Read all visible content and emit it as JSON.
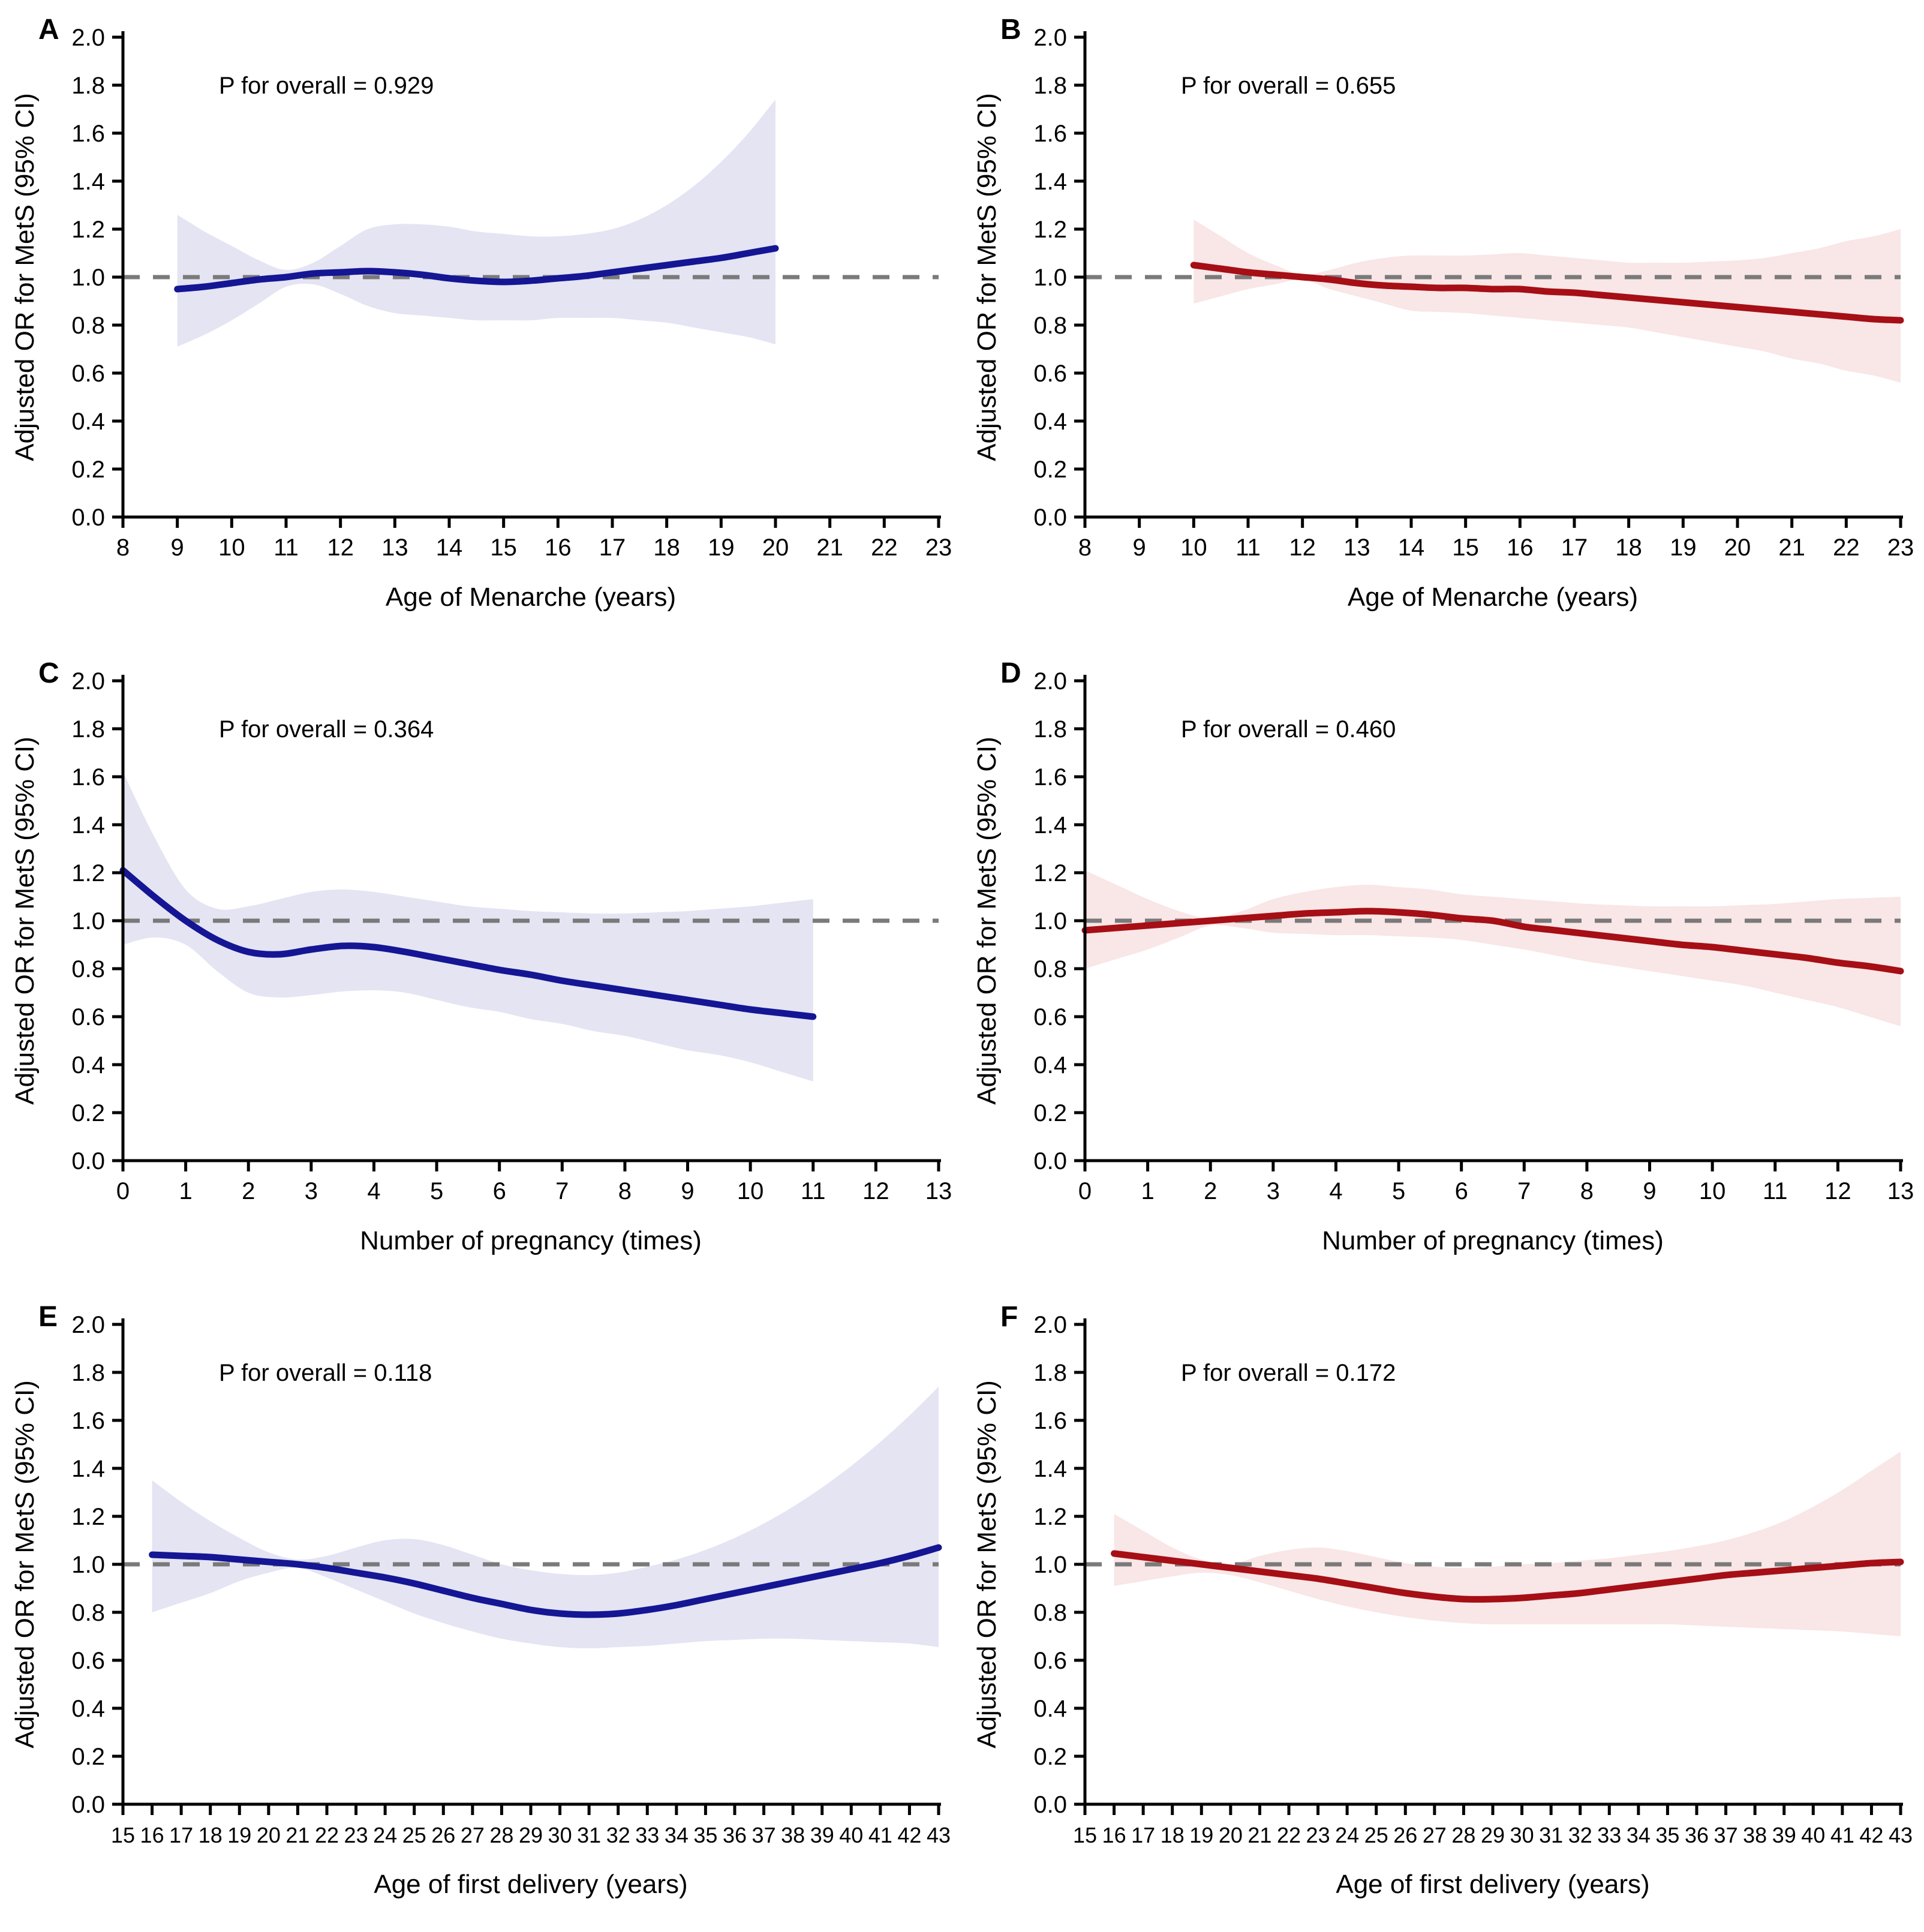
{
  "figure": {
    "background": "#ffffff",
    "axis_color": "#000000",
    "reference_line_color": "#7a7a7a",
    "reference_value": 1.0
  },
  "chart_data": [
    {
      "id": "A",
      "type": "line",
      "p_text": "P for overall = 0.929",
      "xlabel": "Age of Menarche (years)",
      "ylabel": "Adjusted OR for MetS (95% CI)",
      "xlim": [
        8,
        23
      ],
      "ylim": [
        0,
        2
      ],
      "x_ticks": [
        8,
        9,
        10,
        11,
        12,
        13,
        14,
        15,
        16,
        17,
        18,
        19,
        20,
        21,
        22,
        23
      ],
      "y_ticks": [
        0,
        0.2,
        0.4,
        0.6,
        0.8,
        1,
        1.2,
        1.4,
        1.6,
        1.8,
        2
      ],
      "ref_y": 1.0,
      "line_color": "#141694",
      "band_color": "#e4e4f3",
      "x": [
        9,
        9.5,
        10,
        10.5,
        11,
        11.5,
        12,
        12.5,
        13,
        13.5,
        14,
        14.5,
        15,
        15.5,
        16,
        16.5,
        17,
        17.5,
        18,
        18.5,
        19,
        19.5,
        20
      ],
      "or": [
        0.95,
        0.96,
        0.975,
        0.99,
        1.0,
        1.015,
        1.02,
        1.025,
        1.02,
        1.01,
        0.995,
        0.985,
        0.98,
        0.985,
        0.995,
        1.005,
        1.02,
        1.035,
        1.05,
        1.065,
        1.08,
        1.1,
        1.12
      ],
      "upper": [
        1.26,
        1.19,
        1.13,
        1.07,
        1.03,
        1.06,
        1.13,
        1.2,
        1.22,
        1.22,
        1.21,
        1.19,
        1.18,
        1.17,
        1.17,
        1.18,
        1.2,
        1.24,
        1.3,
        1.38,
        1.48,
        1.6,
        1.74
      ],
      "lower": [
        0.71,
        0.76,
        0.82,
        0.89,
        0.96,
        0.97,
        0.93,
        0.88,
        0.85,
        0.84,
        0.83,
        0.82,
        0.82,
        0.82,
        0.83,
        0.83,
        0.83,
        0.82,
        0.81,
        0.79,
        0.77,
        0.75,
        0.72
      ]
    },
    {
      "id": "B",
      "type": "line",
      "p_text": "P for overall = 0.655",
      "xlabel": "Age of Menarche (years)",
      "ylabel": "Adjusted OR for MetS (95% CI)",
      "xlim": [
        8,
        23
      ],
      "ylim": [
        0,
        2
      ],
      "x_ticks": [
        8,
        9,
        10,
        11,
        12,
        13,
        14,
        15,
        16,
        17,
        18,
        19,
        20,
        21,
        22,
        23
      ],
      "y_ticks": [
        0,
        0.2,
        0.4,
        0.6,
        0.8,
        1,
        1.2,
        1.4,
        1.6,
        1.8,
        2
      ],
      "ref_y": 1.0,
      "line_color": "#a50f15",
      "band_color": "#f9e6e7",
      "x": [
        10,
        10.5,
        11,
        11.5,
        12,
        12.5,
        13,
        13.5,
        14,
        14.5,
        15,
        15.5,
        16,
        16.5,
        17,
        17.5,
        18,
        18.5,
        19,
        19.5,
        20,
        20.5,
        21,
        21.5,
        22,
        22.5,
        23
      ],
      "or": [
        1.05,
        1.035,
        1.02,
        1.01,
        1.0,
        0.99,
        0.975,
        0.965,
        0.96,
        0.955,
        0.955,
        0.95,
        0.95,
        0.94,
        0.935,
        0.925,
        0.915,
        0.905,
        0.895,
        0.885,
        0.875,
        0.865,
        0.855,
        0.845,
        0.835,
        0.825,
        0.82
      ],
      "upper": [
        1.24,
        1.17,
        1.1,
        1.05,
        1.01,
        1.03,
        1.06,
        1.08,
        1.09,
        1.09,
        1.09,
        1.095,
        1.1,
        1.09,
        1.08,
        1.07,
        1.06,
        1.06,
        1.06,
        1.065,
        1.07,
        1.08,
        1.1,
        1.12,
        1.15,
        1.17,
        1.2
      ],
      "lower": [
        0.89,
        0.92,
        0.95,
        0.97,
        0.99,
        0.95,
        0.92,
        0.89,
        0.86,
        0.855,
        0.85,
        0.84,
        0.83,
        0.82,
        0.81,
        0.8,
        0.79,
        0.77,
        0.75,
        0.73,
        0.71,
        0.69,
        0.66,
        0.64,
        0.61,
        0.59,
        0.56
      ]
    },
    {
      "id": "C",
      "type": "line",
      "p_text": "P for overall = 0.364",
      "xlabel": "Number of pregnancy (times)",
      "ylabel": "Adjusted OR for MetS (95% CI)",
      "xlim": [
        0,
        13
      ],
      "ylim": [
        0,
        2
      ],
      "x_ticks": [
        0,
        1,
        2,
        3,
        4,
        5,
        6,
        7,
        8,
        9,
        10,
        11,
        12,
        13
      ],
      "y_ticks": [
        0,
        0.2,
        0.4,
        0.6,
        0.8,
        1,
        1.2,
        1.4,
        1.6,
        1.8,
        2
      ],
      "ref_y": 1.0,
      "line_color": "#141694",
      "band_color": "#e4e4f3",
      "x": [
        0,
        0.5,
        1,
        1.5,
        2,
        2.5,
        3,
        3.5,
        4,
        4.5,
        5,
        5.5,
        6,
        6.5,
        7,
        7.5,
        8,
        8.5,
        9,
        9.5,
        10,
        10.5,
        11
      ],
      "or": [
        1.21,
        1.1,
        1.0,
        0.92,
        0.87,
        0.86,
        0.88,
        0.895,
        0.89,
        0.87,
        0.845,
        0.82,
        0.795,
        0.775,
        0.75,
        0.73,
        0.71,
        0.69,
        0.67,
        0.65,
        0.63,
        0.615,
        0.6
      ],
      "upper": [
        1.62,
        1.35,
        1.13,
        1.05,
        1.06,
        1.09,
        1.12,
        1.13,
        1.12,
        1.1,
        1.08,
        1.06,
        1.05,
        1.04,
        1.035,
        1.03,
        1.03,
        1.035,
        1.04,
        1.05,
        1.06,
        1.075,
        1.09
      ],
      "lower": [
        0.9,
        0.93,
        0.9,
        0.79,
        0.7,
        0.68,
        0.69,
        0.705,
        0.71,
        0.7,
        0.67,
        0.64,
        0.62,
        0.59,
        0.57,
        0.54,
        0.52,
        0.49,
        0.46,
        0.44,
        0.41,
        0.37,
        0.33
      ]
    },
    {
      "id": "D",
      "type": "line",
      "p_text": "P for overall = 0.460",
      "xlabel": "Number of pregnancy (times)",
      "ylabel": "Adjusted OR for MetS (95% CI)",
      "xlim": [
        0,
        13
      ],
      "ylim": [
        0,
        2
      ],
      "x_ticks": [
        0,
        1,
        2,
        3,
        4,
        5,
        6,
        7,
        8,
        9,
        10,
        11,
        12,
        13
      ],
      "y_ticks": [
        0,
        0.2,
        0.4,
        0.6,
        0.8,
        1,
        1.2,
        1.4,
        1.6,
        1.8,
        2
      ],
      "ref_y": 1.0,
      "line_color": "#a50f15",
      "band_color": "#f9e6e7",
      "x": [
        0,
        0.5,
        1,
        1.5,
        2,
        2.5,
        3,
        3.5,
        4,
        4.5,
        5,
        5.5,
        6,
        6.5,
        7,
        7.5,
        8,
        8.5,
        9,
        9.5,
        10,
        10.5,
        11,
        11.5,
        12,
        12.5,
        13
      ],
      "or": [
        0.96,
        0.97,
        0.98,
        0.99,
        1.0,
        1.01,
        1.02,
        1.03,
        1.035,
        1.04,
        1.035,
        1.025,
        1.01,
        1.0,
        0.975,
        0.96,
        0.945,
        0.93,
        0.915,
        0.9,
        0.89,
        0.875,
        0.86,
        0.845,
        0.825,
        0.81,
        0.79
      ],
      "upper": [
        1.21,
        1.15,
        1.09,
        1.04,
        1.01,
        1.04,
        1.09,
        1.12,
        1.14,
        1.15,
        1.14,
        1.13,
        1.11,
        1.1,
        1.09,
        1.08,
        1.07,
        1.065,
        1.06,
        1.06,
        1.06,
        1.065,
        1.07,
        1.08,
        1.09,
        1.095,
        1.1
      ],
      "lower": [
        0.8,
        0.84,
        0.88,
        0.93,
        0.98,
        0.97,
        0.95,
        0.945,
        0.94,
        0.94,
        0.935,
        0.93,
        0.92,
        0.9,
        0.88,
        0.855,
        0.83,
        0.81,
        0.79,
        0.77,
        0.75,
        0.73,
        0.7,
        0.67,
        0.64,
        0.6,
        0.56
      ]
    },
    {
      "id": "E",
      "type": "line",
      "p_text": "P for overall = 0.118",
      "xlabel": "Age of first delivery (years)",
      "ylabel": "Adjusted OR for MetS (95% CI)",
      "xlim": [
        15,
        43
      ],
      "ylim": [
        0,
        2
      ],
      "x_ticks": [
        15,
        16,
        17,
        18,
        19,
        20,
        21,
        22,
        23,
        24,
        25,
        26,
        27,
        28,
        29,
        30,
        31,
        32,
        33,
        34,
        35,
        36,
        37,
        38,
        39,
        40,
        41,
        42,
        43
      ],
      "y_ticks": [
        0,
        0.2,
        0.4,
        0.6,
        0.8,
        1,
        1.2,
        1.4,
        1.6,
        1.8,
        2
      ],
      "ref_y": 1.0,
      "line_color": "#141694",
      "band_color": "#e4e4f3",
      "x": [
        16,
        17,
        18,
        19,
        20,
        21,
        22,
        23,
        24,
        25,
        26,
        27,
        28,
        29,
        30,
        31,
        32,
        33,
        34,
        35,
        36,
        37,
        38,
        39,
        40,
        41,
        42,
        43
      ],
      "or": [
        1.04,
        1.035,
        1.03,
        1.02,
        1.01,
        1.0,
        0.985,
        0.965,
        0.945,
        0.92,
        0.89,
        0.86,
        0.835,
        0.81,
        0.795,
        0.79,
        0.795,
        0.81,
        0.83,
        0.855,
        0.88,
        0.905,
        0.93,
        0.955,
        0.98,
        1.005,
        1.035,
        1.07
      ],
      "upper": [
        1.35,
        1.26,
        1.18,
        1.11,
        1.05,
        1.02,
        1.035,
        1.07,
        1.1,
        1.105,
        1.08,
        1.04,
        1.0,
        0.975,
        0.96,
        0.955,
        0.965,
        0.99,
        1.02,
        1.06,
        1.11,
        1.17,
        1.24,
        1.32,
        1.41,
        1.51,
        1.62,
        1.74
      ],
      "lower": [
        0.8,
        0.84,
        0.88,
        0.93,
        0.965,
        0.985,
        0.945,
        0.895,
        0.845,
        0.795,
        0.755,
        0.72,
        0.69,
        0.67,
        0.655,
        0.65,
        0.655,
        0.66,
        0.67,
        0.68,
        0.685,
        0.69,
        0.69,
        0.685,
        0.68,
        0.675,
        0.67,
        0.655
      ]
    },
    {
      "id": "F",
      "type": "line",
      "p_text": "P for overall = 0.172",
      "xlabel": "Age of first delivery (years)",
      "ylabel": "Adjusted OR for MetS (95% CI)",
      "xlim": [
        15,
        43
      ],
      "ylim": [
        0,
        2
      ],
      "x_ticks": [
        15,
        16,
        17,
        18,
        19,
        20,
        21,
        22,
        23,
        24,
        25,
        26,
        27,
        28,
        29,
        30,
        31,
        32,
        33,
        34,
        35,
        36,
        37,
        38,
        39,
        40,
        41,
        42,
        43
      ],
      "y_ticks": [
        0,
        0.2,
        0.4,
        0.6,
        0.8,
        1,
        1.2,
        1.4,
        1.6,
        1.8,
        2
      ],
      "ref_y": 1.0,
      "line_color": "#a50f15",
      "band_color": "#f9e6e7",
      "x": [
        16,
        17,
        18,
        19,
        20,
        21,
        22,
        23,
        24,
        25,
        26,
        27,
        28,
        29,
        30,
        31,
        32,
        33,
        34,
        35,
        36,
        37,
        38,
        39,
        40,
        41,
        42,
        43
      ],
      "or": [
        1.045,
        1.03,
        1.015,
        1.0,
        0.985,
        0.97,
        0.955,
        0.94,
        0.92,
        0.9,
        0.88,
        0.865,
        0.855,
        0.855,
        0.86,
        0.87,
        0.88,
        0.895,
        0.91,
        0.925,
        0.94,
        0.955,
        0.965,
        0.975,
        0.985,
        0.995,
        1.005,
        1.01
      ],
      "upper": [
        1.21,
        1.14,
        1.07,
        1.02,
        1.0,
        1.035,
        1.06,
        1.07,
        1.055,
        1.03,
        1.005,
        0.99,
        0.985,
        0.99,
        1.0,
        1.005,
        1.015,
        1.025,
        1.04,
        1.055,
        1.075,
        1.1,
        1.135,
        1.18,
        1.24,
        1.31,
        1.39,
        1.47
      ],
      "lower": [
        0.91,
        0.93,
        0.95,
        0.965,
        0.955,
        0.925,
        0.89,
        0.855,
        0.825,
        0.8,
        0.78,
        0.765,
        0.755,
        0.75,
        0.75,
        0.75,
        0.75,
        0.75,
        0.75,
        0.75,
        0.745,
        0.74,
        0.735,
        0.73,
        0.725,
        0.72,
        0.71,
        0.7
      ]
    }
  ]
}
